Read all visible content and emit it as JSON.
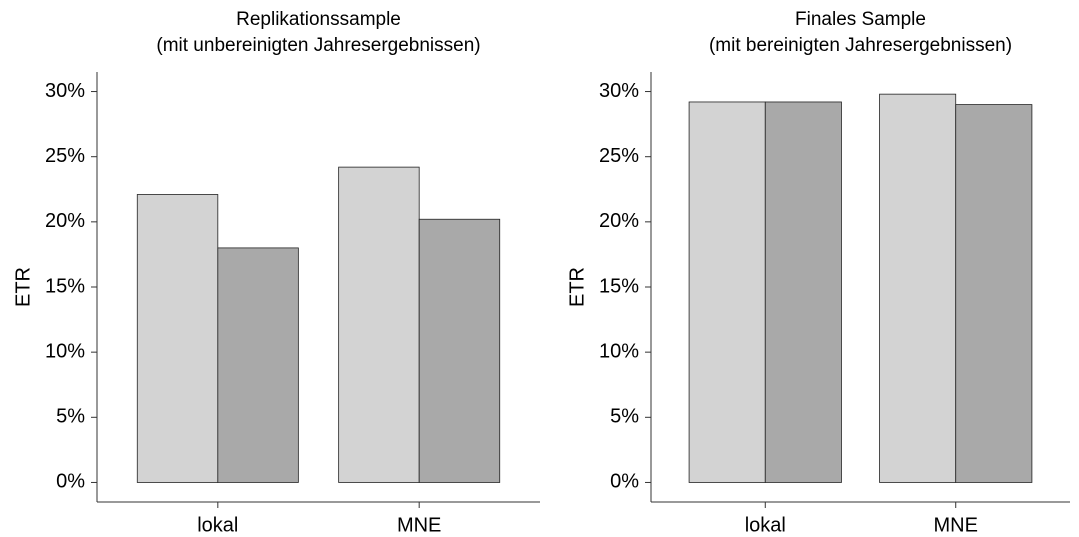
{
  "chart_data": [
    {
      "type": "bar",
      "title": "Replikationssample",
      "subtitle": "(mit unbereinigten Jahresergebnissen)",
      "y_label": "ETR",
      "categories": [
        "lokal",
        "MNE"
      ],
      "series": [
        {
          "color": "#d3d3d3",
          "values": [
            22.1,
            24.2
          ]
        },
        {
          "color": "#a9a9a9",
          "values": [
            18.0,
            20.2
          ]
        }
      ],
      "ylim": [
        -1.5,
        31.5
      ],
      "yticks": [
        {
          "value": 0,
          "label": "0%"
        },
        {
          "value": 5,
          "label": "5%"
        },
        {
          "value": 10,
          "label": "10%"
        },
        {
          "value": 15,
          "label": "15%"
        },
        {
          "value": 20,
          "label": "20%"
        },
        {
          "value": 25,
          "label": "25%"
        },
        {
          "value": 30,
          "label": "30%"
        }
      ]
    },
    {
      "type": "bar",
      "title": "Finales Sample",
      "subtitle": "(mit bereinigten Jahresergebnissen)",
      "y_label": "ETR",
      "categories": [
        "lokal",
        "MNE"
      ],
      "series": [
        {
          "color": "#d3d3d3",
          "values": [
            29.2,
            29.8
          ]
        },
        {
          "color": "#a9a9a9",
          "values": [
            29.2,
            29.0
          ]
        }
      ],
      "ylim": [
        -1.5,
        31.5
      ],
      "yticks": [
        {
          "value": 0,
          "label": "0%"
        },
        {
          "value": 5,
          "label": "5%"
        },
        {
          "value": 10,
          "label": "10%"
        },
        {
          "value": 15,
          "label": "15%"
        },
        {
          "value": 20,
          "label": "20%"
        },
        {
          "value": 25,
          "label": "25%"
        },
        {
          "value": 30,
          "label": "30%"
        }
      ]
    }
  ]
}
